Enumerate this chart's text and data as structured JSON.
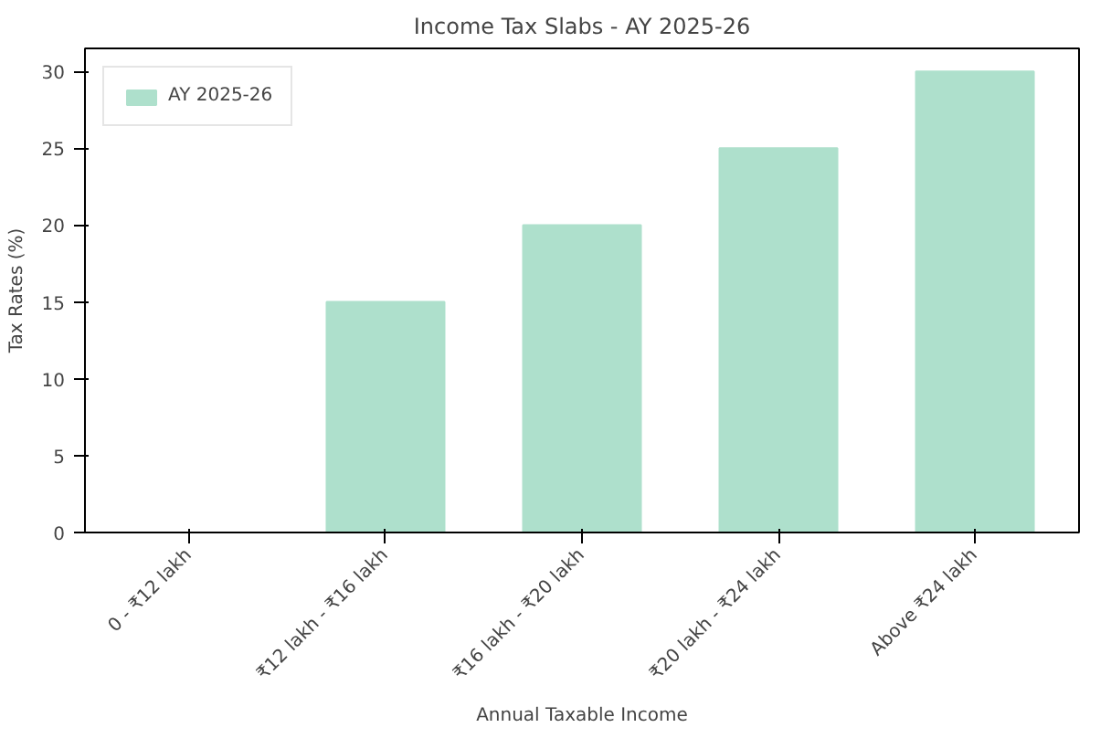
{
  "chart_data": {
    "type": "bar",
    "title": "Income Tax Slabs - AY 2025-26",
    "xlabel": "Annual Taxable Income",
    "ylabel": "Tax Rates (%)",
    "categories": [
      "0 - ₹12 lakh",
      "₹12 lakh - ₹16 lakh",
      "₹16 lakh - ₹20 lakh",
      "₹20 lakh - ₹24 lakh",
      "Above ₹24 lakh"
    ],
    "series": [
      {
        "name": "AY 2025-26",
        "color": "#aee0cc",
        "values": [
          0,
          15,
          20,
          25,
          30
        ]
      }
    ],
    "ylim": [
      0,
      31.5
    ],
    "yticks": [
      0,
      5,
      10,
      15,
      20,
      25,
      30
    ],
    "grid": false,
    "legend": "top left"
  }
}
